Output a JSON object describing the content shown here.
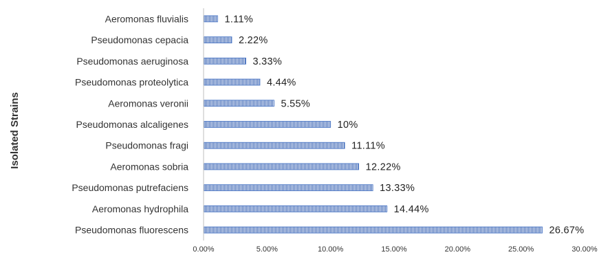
{
  "chart_data": {
    "type": "bar",
    "orientation": "horizontal",
    "title": "",
    "xlabel": "",
    "ylabel": "Isolated Strains",
    "xlim": [
      0,
      30
    ],
    "xticks": [
      "0.00%",
      "5.00%",
      "10.00%",
      "15.00%",
      "20.00%",
      "25.00%",
      "30.00%"
    ],
    "grid": false,
    "legend": "none",
    "bar_color": "#4472c4",
    "categories": [
      "Aeromonas fluvialis",
      "Pseudomonas cepacia",
      "Pseudomonas aeruginosa",
      "Pseudomonas proteolytica",
      "Aeromonas veronii",
      "Pseudomonas alcaligenes",
      "Pseudomonas fragi",
      "Aeromonas sobria",
      "Pseudomonas putrefaciens",
      "Aeromonas hydrophila",
      "Pseudomonas fluorescens"
    ],
    "values": [
      1.11,
      2.22,
      3.33,
      4.44,
      5.55,
      10,
      11.11,
      12.22,
      13.33,
      14.44,
      26.67
    ],
    "data_labels": [
      "1.11%",
      "2.22%",
      "3.33%",
      "4.44%",
      "5.55%",
      "10%",
      "11.11%",
      "12.22%",
      "13.33%",
      "14.44%",
      "26.67%"
    ]
  }
}
